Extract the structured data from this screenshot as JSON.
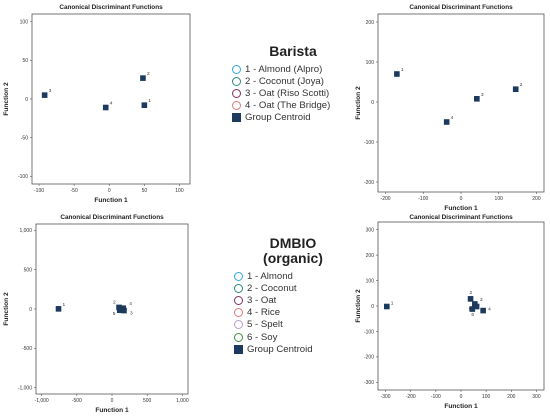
{
  "chart_data": [
    {
      "type": "scatter",
      "title": "Canonical Discriminant Functions",
      "xlabel": "Function 1",
      "ylabel": "Function 2",
      "xlim": [
        -110,
        115
      ],
      "ylim": [
        -110,
        110
      ],
      "xticks": [
        -100,
        -50,
        0,
        50,
        100
      ],
      "xtick_labels": [
        "-100",
        "-50",
        "0",
        "50",
        "100"
      ],
      "yticks": [
        -100,
        -50,
        0,
        50,
        100
      ],
      "ytick_labels": [
        "-100",
        "-50",
        "0",
        "50",
        "100"
      ],
      "grid": false,
      "legend": "none",
      "centroids": [
        {
          "label": "1",
          "x": 50,
          "y": -8
        },
        {
          "label": "2",
          "x": 48,
          "y": 27
        },
        {
          "label": "3",
          "x": -92,
          "y": 5
        },
        {
          "label": "4",
          "x": -5,
          "y": -11
        }
      ]
    },
    {
      "type": "scatter",
      "title": "Canonical Discriminant Functions",
      "xlabel": "Function 1",
      "ylabel": "Function 2",
      "xlim": [
        -220,
        220
      ],
      "ylim": [
        -225,
        220
      ],
      "xticks": [
        -200,
        -100,
        0,
        100,
        200
      ],
      "xtick_labels": [
        "-200",
        "-100",
        "0",
        "100",
        "200"
      ],
      "yticks": [
        -200,
        -100,
        0,
        100,
        200
      ],
      "ytick_labels": [
        "-200",
        "-100",
        "0",
        "100",
        "200"
      ],
      "grid": false,
      "legend": "none",
      "centroids": [
        {
          "label": "1",
          "x": -170,
          "y": 70
        },
        {
          "label": "2",
          "x": 145,
          "y": 32
        },
        {
          "label": "3",
          "x": 42,
          "y": 8
        },
        {
          "label": "4",
          "x": -38,
          "y": -50
        }
      ]
    },
    {
      "type": "scatter",
      "title": "Canonical Discriminant Functions",
      "xlabel": "Function 1",
      "ylabel": "Function 2",
      "xlim": [
        -1080,
        1080
      ],
      "ylim": [
        -1080,
        1080
      ],
      "xticks": [
        -1000,
        -500,
        0,
        500,
        1000
      ],
      "xtick_labels": [
        "-1,000",
        "-500",
        "0",
        "500",
        "1,000"
      ],
      "yticks": [
        -1000,
        -500,
        0,
        500,
        1000
      ],
      "ytick_labels": [
        "-1,000",
        "-500",
        "0",
        "500",
        "1,000"
      ],
      "grid": false,
      "legend": "none",
      "centroids": [
        {
          "label": "1",
          "x": -760,
          "y": 2
        },
        {
          "label": "2",
          "x": 100,
          "y": 20
        },
        {
          "label": "3",
          "x": 170,
          "y": -20
        },
        {
          "label": "4",
          "x": 160,
          "y": 10
        },
        {
          "label": "5",
          "x": 110,
          "y": -15
        },
        {
          "label": "6",
          "x": 130,
          "y": 0
        }
      ]
    },
    {
      "type": "scatter",
      "title": "Canonical Discriminant Functions",
      "xlabel": "Function 1",
      "ylabel": "Function 2",
      "xlim": [
        -330,
        330
      ],
      "ylim": [
        -330,
        330
      ],
      "xticks": [
        -300,
        -200,
        -100,
        0,
        100,
        200,
        300
      ],
      "xtick_labels": [
        "-300",
        "-200",
        "-100",
        "0",
        "100",
        "200",
        "300"
      ],
      "yticks": [
        -300,
        -200,
        -100,
        0,
        100,
        200,
        300
      ],
      "ytick_labels": [
        "-300",
        "-200",
        "-100",
        "0",
        "100",
        "200",
        "300"
      ],
      "grid": false,
      "legend": "none",
      "centroids": [
        {
          "label": "1",
          "x": -295,
          "y": -2
        },
        {
          "label": "2",
          "x": 38,
          "y": 28
        },
        {
          "label": "3",
          "x": 55,
          "y": 8
        },
        {
          "label": "4",
          "x": 88,
          "y": -18
        },
        {
          "label": "5",
          "x": 62,
          "y": -2
        },
        {
          "label": "6",
          "x": 45,
          "y": -12
        }
      ]
    }
  ],
  "legends": [
    {
      "title_lines": [
        "Barista"
      ],
      "items": [
        {
          "label": "1 - Almond (Alpro)",
          "color": "#2fa7e0",
          "marker": "circle"
        },
        {
          "label": "2 - Coconut (Joya)",
          "color": "#2a8a78",
          "marker": "circle"
        },
        {
          "label": "3 - Oat (Riso Scotti)",
          "color": "#8a2e5c",
          "marker": "circle"
        },
        {
          "label": "4 - Oat (The Bridge)",
          "color": "#e07a7a",
          "marker": "circle"
        },
        {
          "label": "Group Centroid",
          "color": "#1c3a5e",
          "marker": "square"
        }
      ]
    },
    {
      "title_lines": [
        "DMBIO",
        "(organic)"
      ],
      "items": [
        {
          "label": "1 - Almond",
          "color": "#2fa7e0",
          "marker": "circle"
        },
        {
          "label": "2 - Coconut",
          "color": "#2a8a78",
          "marker": "circle"
        },
        {
          "label": "3 - Oat",
          "color": "#8a2e5c",
          "marker": "circle"
        },
        {
          "label": "4 - Rice",
          "color": "#e07a7a",
          "marker": "circle"
        },
        {
          "label": "5 - Spelt",
          "color": "#b8a0c8",
          "marker": "circle"
        },
        {
          "label": "6 - Soy",
          "color": "#3e8e3e",
          "marker": "circle"
        },
        {
          "label": "Group Centroid",
          "color": "#1c3a5e",
          "marker": "square"
        }
      ]
    }
  ]
}
